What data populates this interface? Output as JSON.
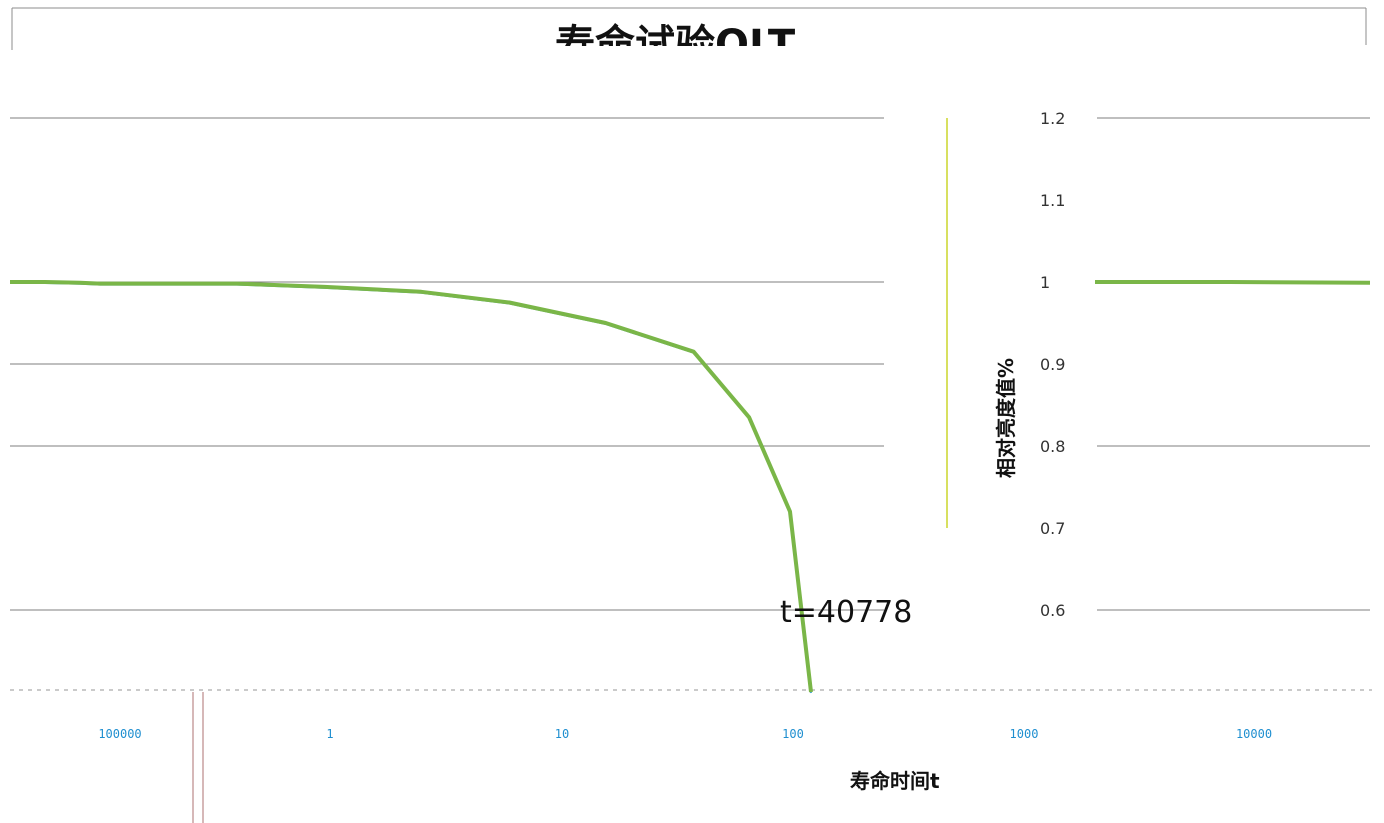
{
  "chart_data": {
    "type": "line",
    "title": "寿命试验OLT",
    "xlabel": "寿命时间t",
    "ylabel": "相对亮度值%",
    "y_ticks": [
      "1.2",
      "1.1",
      "1",
      "0.9",
      "0.8",
      "0.7",
      "0.6"
    ],
    "ylim": [
      0.5,
      1.2
    ],
    "x_ticks": [
      "100000",
      "1",
      "10",
      "100",
      "1000",
      "10000"
    ],
    "x_scale": "log",
    "grid": true,
    "series": [
      {
        "color": "#7ab648",
        "x": [
          1e-05,
          0.0001,
          0.001,
          0.01,
          0.1,
          0.3,
          1,
          3,
          10,
          30,
          60,
          100,
          130
        ],
        "y": [
          1.0,
          1.0,
          0.999,
          0.998,
          0.998,
          0.994,
          0.988,
          0.975,
          0.95,
          0.915,
          0.835,
          0.72,
          0.5
        ]
      },
      {
        "color": "#7ab648",
        "x": [
          40000,
          100000,
          300000
        ],
        "y": [
          1.0,
          1.0,
          0.999
        ]
      }
    ],
    "annotations": [
      {
        "text": "t=40778"
      }
    ]
  }
}
